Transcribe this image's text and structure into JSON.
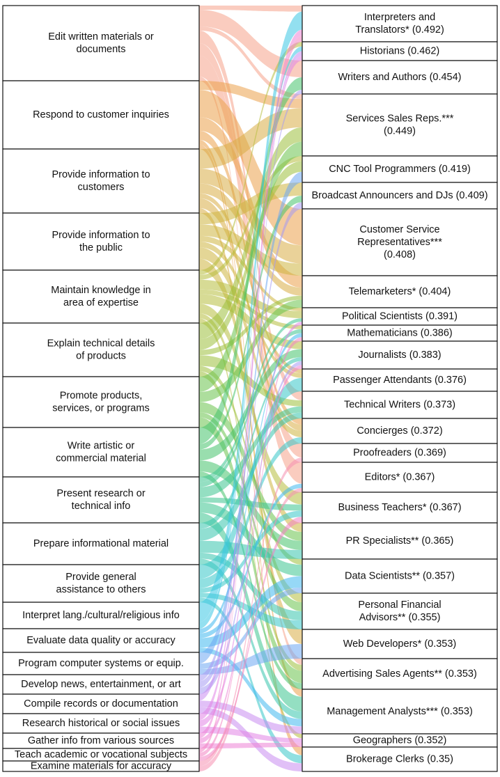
{
  "chart_data": {
    "type": "sankey",
    "title": "",
    "tasks": [
      {
        "lines": [
          "Edit written materials or",
          "documents"
        ],
        "color": "#f6a38a"
      },
      {
        "lines": [
          "Respond to customer inquiries"
        ],
        "color": "#eba04a"
      },
      {
        "lines": [
          "Provide information to",
          "customers"
        ],
        "color": "#d9ad45"
      },
      {
        "lines": [
          "Provide information to",
          "the public"
        ],
        "color": "#cdb53f"
      },
      {
        "lines": [
          "Maintain knowledge in",
          "area of expertise"
        ],
        "color": "#b7bd3e"
      },
      {
        "lines": [
          "Explain technical details",
          "of products"
        ],
        "color": "#9cbf3c"
      },
      {
        "lines": [
          "Promote products,",
          "services, or programs"
        ],
        "color": "#69c24c"
      },
      {
        "lines": [
          "Write artistic or",
          "commercial material"
        ],
        "color": "#45c36b"
      },
      {
        "lines": [
          "Present research or",
          "technical info"
        ],
        "color": "#3dc48f"
      },
      {
        "lines": [
          "Prepare informational material"
        ],
        "color": "#37c5ad"
      },
      {
        "lines": [
          "Provide general",
          "assistance to others"
        ],
        "color": "#37c6c8"
      },
      {
        "lines": [
          "Interpret lang./cultural/religious info"
        ],
        "color": "#3ac7e3"
      },
      {
        "lines": [
          "Evaluate data quality or accuracy"
        ],
        "color": "#3fb8ee"
      },
      {
        "lines": [
          "Program computer systems or equip."
        ],
        "color": "#6ea8f3"
      },
      {
        "lines": [
          "Develop news, entertainment, or art"
        ],
        "color": "#a69af2"
      },
      {
        "lines": [
          "Compile records or documentation"
        ],
        "color": "#c98df0"
      },
      {
        "lines": [
          "Research historical or social issues"
        ],
        "color": "#e184e6"
      },
      {
        "lines": [
          "Gather info from various sources"
        ],
        "color": "#ec82d5"
      },
      {
        "lines": [
          "Teach academic or vocational subjects"
        ],
        "color": "#f283c2"
      },
      {
        "lines": [
          "Examine materials for accuracy"
        ],
        "color": "#f590b0"
      }
    ],
    "occupations": [
      {
        "lines": [
          "Interpreters and",
          "Translators* (0.492)"
        ]
      },
      {
        "lines": [
          "Historians (0.462)"
        ]
      },
      {
        "lines": [
          "Writers and Authors (0.454)"
        ]
      },
      {
        "lines": [
          "Services Sales Reps.***",
          "(0.449)"
        ]
      },
      {
        "lines": [
          "CNC Tool Programmers (0.419)"
        ]
      },
      {
        "lines": [
          "Broadcast Announcers and DJs (0.409)"
        ]
      },
      {
        "lines": [
          "Customer Service",
          "Representatives***",
          "(0.408)"
        ]
      },
      {
        "lines": [
          "Telemarketers* (0.404)"
        ]
      },
      {
        "lines": [
          "Political Scientists (0.391)"
        ]
      },
      {
        "lines": [
          "Mathematicians (0.386)"
        ]
      },
      {
        "lines": [
          "Journalists (0.383)"
        ]
      },
      {
        "lines": [
          "Passenger Attendants (0.376)"
        ]
      },
      {
        "lines": [
          "Technical Writers (0.373)"
        ]
      },
      {
        "lines": [
          "Concierges (0.372)"
        ]
      },
      {
        "lines": [
          "Proofreaders (0.369)"
        ]
      },
      {
        "lines": [
          "Editors* (0.367)"
        ]
      },
      {
        "lines": [
          "Business Teachers* (0.367)"
        ]
      },
      {
        "lines": [
          "PR Specialists** (0.365)"
        ]
      },
      {
        "lines": [
          "Data Scientists** (0.357)"
        ]
      },
      {
        "lines": [
          "Personal Financial",
          "Advisors** (0.355)"
        ]
      },
      {
        "lines": [
          "Web Developers* (0.353)"
        ]
      },
      {
        "lines": [
          "Advertising Sales Agents** (0.353)"
        ]
      },
      {
        "lines": [
          "Management Analysts*** (0.353)"
        ]
      },
      {
        "lines": [
          "Geographers (0.352)"
        ]
      },
      {
        "lines": [
          "Brokerage Clerks (0.35)"
        ]
      }
    ],
    "links": [
      [
        0,
        0,
        1
      ],
      [
        0,
        2,
        4
      ],
      [
        0,
        14,
        3
      ],
      [
        0,
        15,
        5
      ],
      [
        0,
        12,
        3
      ],
      [
        0,
        21,
        1
      ],
      [
        0,
        3,
        1
      ],
      [
        1,
        6,
        6
      ],
      [
        1,
        7,
        3
      ],
      [
        1,
        13,
        2
      ],
      [
        1,
        3,
        2
      ],
      [
        1,
        24,
        1
      ],
      [
        1,
        22,
        1
      ],
      [
        2,
        3,
        4
      ],
      [
        2,
        6,
        3
      ],
      [
        2,
        7,
        2
      ],
      [
        2,
        13,
        2
      ],
      [
        2,
        11,
        1
      ],
      [
        2,
        20,
        1
      ],
      [
        3,
        5,
        2
      ],
      [
        3,
        6,
        2
      ],
      [
        3,
        13,
        2
      ],
      [
        3,
        8,
        1
      ],
      [
        3,
        17,
        2
      ],
      [
        3,
        11,
        1
      ],
      [
        4,
        1,
        1
      ],
      [
        4,
        4,
        1
      ],
      [
        4,
        8,
        2
      ],
      [
        4,
        10,
        2
      ],
      [
        4,
        16,
        2
      ],
      [
        4,
        9,
        1
      ],
      [
        4,
        19,
        1
      ],
      [
        4,
        23,
        1
      ],
      [
        5,
        3,
        3
      ],
      [
        5,
        4,
        2
      ],
      [
        5,
        12,
        2
      ],
      [
        5,
        7,
        1
      ],
      [
        5,
        21,
        1
      ],
      [
        5,
        18,
        1
      ],
      [
        6,
        3,
        3
      ],
      [
        6,
        7,
        2
      ],
      [
        6,
        21,
        2
      ],
      [
        6,
        17,
        2
      ],
      [
        6,
        19,
        1
      ],
      [
        7,
        2,
        3
      ],
      [
        7,
        10,
        2
      ],
      [
        7,
        17,
        2
      ],
      [
        7,
        5,
        1
      ],
      [
        7,
        21,
        1
      ],
      [
        8,
        12,
        2
      ],
      [
        8,
        8,
        1
      ],
      [
        8,
        18,
        2
      ],
      [
        8,
        22,
        2
      ],
      [
        8,
        16,
        1
      ],
      [
        8,
        9,
        1
      ],
      [
        9,
        12,
        2
      ],
      [
        9,
        10,
        1
      ],
      [
        9,
        17,
        2
      ],
      [
        9,
        19,
        1
      ],
      [
        9,
        22,
        1
      ],
      [
        10,
        11,
        3
      ],
      [
        10,
        13,
        2
      ],
      [
        10,
        19,
        1
      ],
      [
        10,
        24,
        1
      ],
      [
        10,
        16,
        1
      ],
      [
        11,
        0,
        3
      ],
      [
        11,
        1,
        1
      ],
      [
        12,
        18,
        2
      ],
      [
        12,
        15,
        1
      ],
      [
        12,
        22,
        1
      ],
      [
        12,
        9,
        1
      ],
      [
        13,
        4,
        2
      ],
      [
        13,
        20,
        1
      ],
      [
        13,
        18,
        1
      ],
      [
        14,
        2,
        1
      ],
      [
        14,
        5,
        1
      ],
      [
        14,
        10,
        1
      ],
      [
        15,
        24,
        1
      ],
      [
        15,
        22,
        1
      ],
      [
        15,
        1,
        1
      ],
      [
        16,
        1,
        1
      ],
      [
        16,
        8,
        1
      ],
      [
        16,
        23,
        1
      ],
      [
        17,
        10,
        1
      ],
      [
        17,
        23,
        1
      ],
      [
        17,
        0,
        1
      ],
      [
        18,
        16,
        1
      ],
      [
        18,
        9,
        1
      ],
      [
        18,
        0,
        1
      ],
      [
        19,
        14,
        1
      ],
      [
        19,
        15,
        1
      ]
    ]
  }
}
